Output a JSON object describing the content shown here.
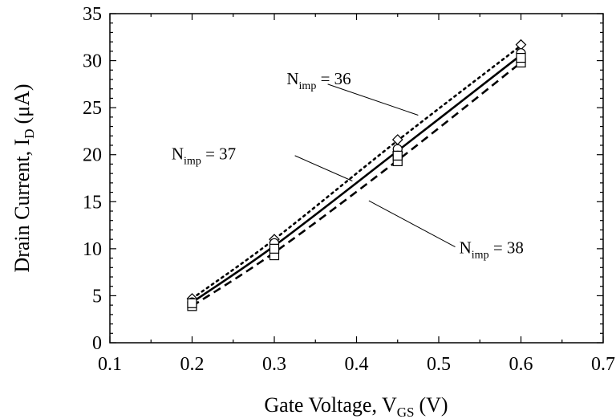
{
  "chart_data": {
    "type": "line",
    "xlabel": "Gate Voltage, V",
    "xlabel_sub": "GS",
    "xlabel_unit": "(V)",
    "ylabel": "Drain Current, I",
    "ylabel_sub": "D",
    "ylabel_unit": "(μA)",
    "xlim": [
      0.1,
      0.7
    ],
    "ylim": [
      0,
      35
    ],
    "x_ticks": [
      0.1,
      0.2,
      0.3,
      0.4,
      0.5,
      0.6,
      0.7
    ],
    "x_tick_labels": [
      "0.1",
      "0.2",
      "0.3",
      "0.4",
      "0.5",
      "0.6",
      "0.7"
    ],
    "y_ticks": [
      0,
      5,
      10,
      15,
      20,
      25,
      30,
      35
    ],
    "y_tick_labels": [
      "0",
      "5",
      "10",
      "15",
      "20",
      "25",
      "30",
      "35"
    ],
    "grid": false,
    "series": [
      {
        "name": "N = 36",
        "label_main": "N",
        "label_sub": "imp",
        "label_rest": " = 36",
        "line_style": "dotted",
        "marker": "diamond",
        "x": [
          0.2,
          0.3,
          0.45,
          0.6
        ],
        "y": [
          4.7,
          11.0,
          21.5,
          31.6
        ],
        "points_x": [
          0.2,
          0.3,
          0.45,
          0.45,
          0.6
        ],
        "points_y": [
          4.7,
          11.0,
          21.6,
          20.3,
          31.7
        ]
      },
      {
        "name": "N = 37",
        "label_main": "N",
        "label_sub": "imp",
        "label_rest": " = 37",
        "line_style": "solid",
        "marker": "circle",
        "x": [
          0.2,
          0.3,
          0.45,
          0.6
        ],
        "y": [
          4.3,
          10.3,
          20.4,
          30.6
        ],
        "points_x": [
          0.2,
          0.3,
          0.3,
          0.45,
          0.45,
          0.6
        ],
        "points_y": [
          4.3,
          10.6,
          9.9,
          20.6,
          19.9,
          30.8
        ]
      },
      {
        "name": "N = 38",
        "label_main": "N",
        "label_sub": "imp",
        "label_rest": " = 38",
        "line_style": "dashed",
        "marker": "square",
        "x": [
          0.2,
          0.3,
          0.45,
          0.6
        ],
        "y": [
          3.9,
          9.6,
          19.4,
          29.8
        ],
        "points_x": [
          0.2,
          0.2,
          0.3,
          0.3,
          0.45,
          0.45,
          0.6,
          0.6
        ],
        "points_y": [
          3.9,
          4.2,
          9.3,
          10.0,
          19.3,
          19.9,
          29.8,
          30.3
        ]
      }
    ],
    "annotations": [
      {
        "series": 0,
        "text_x": 0.315,
        "text_y": 27.5,
        "arrow_from": [
          0.365,
          27.5
        ],
        "arrow_to": [
          0.475,
          24.2
        ]
      },
      {
        "series": 1,
        "text_x": 0.175,
        "text_y": 19.5,
        "arrow_from": [
          0.325,
          19.9
        ],
        "arrow_to": [
          0.395,
          17.2
        ]
      },
      {
        "series": 2,
        "text_x": 0.525,
        "text_y": 9.5,
        "arrow_from": [
          0.52,
          10.2
        ],
        "arrow_to": [
          0.415,
          15.1
        ]
      }
    ]
  }
}
